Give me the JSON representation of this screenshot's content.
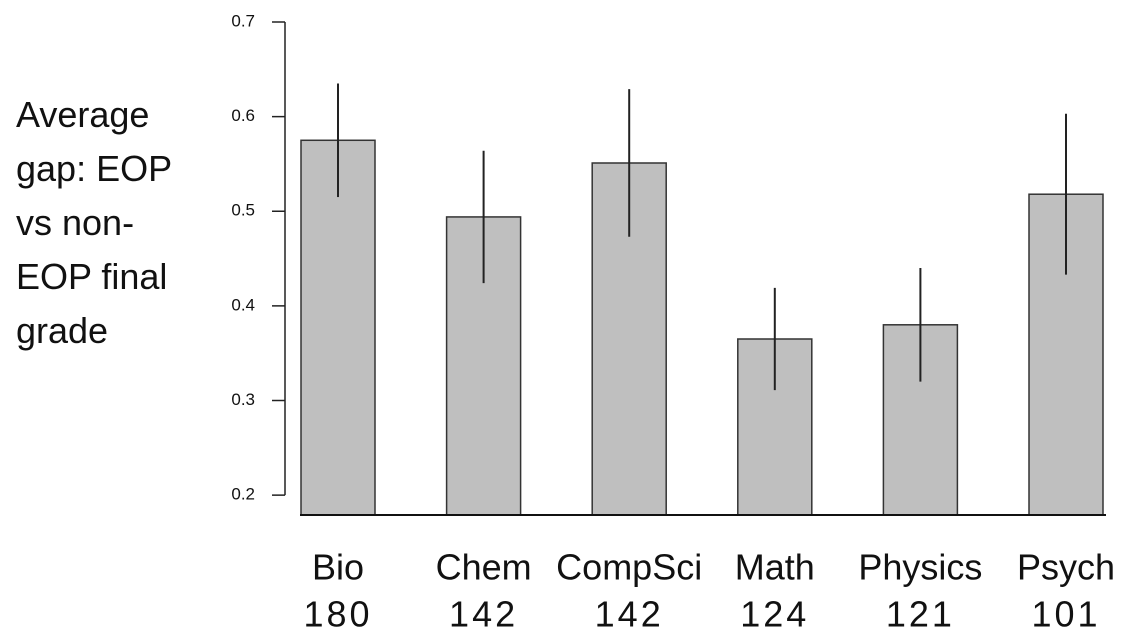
{
  "chart_data": {
    "type": "bar",
    "y_label": "Average gap: EOP vs non-EOP final grade",
    "categories": [
      "Bio",
      "Chem",
      "CompSci",
      "Math",
      "Physics",
      "Psych"
    ],
    "n": [
      180,
      142,
      142,
      124,
      121,
      101
    ],
    "values": [
      0.575,
      0.494,
      0.551,
      0.365,
      0.38,
      0.518
    ],
    "errors": [
      0.06,
      0.07,
      0.078,
      0.054,
      0.06,
      0.085
    ],
    "color": "#bfbfbf",
    "ylim": [
      0.179,
      0.7
    ],
    "yticks": [
      0.2,
      0.3,
      0.4,
      0.5,
      0.6,
      0.7
    ]
  }
}
